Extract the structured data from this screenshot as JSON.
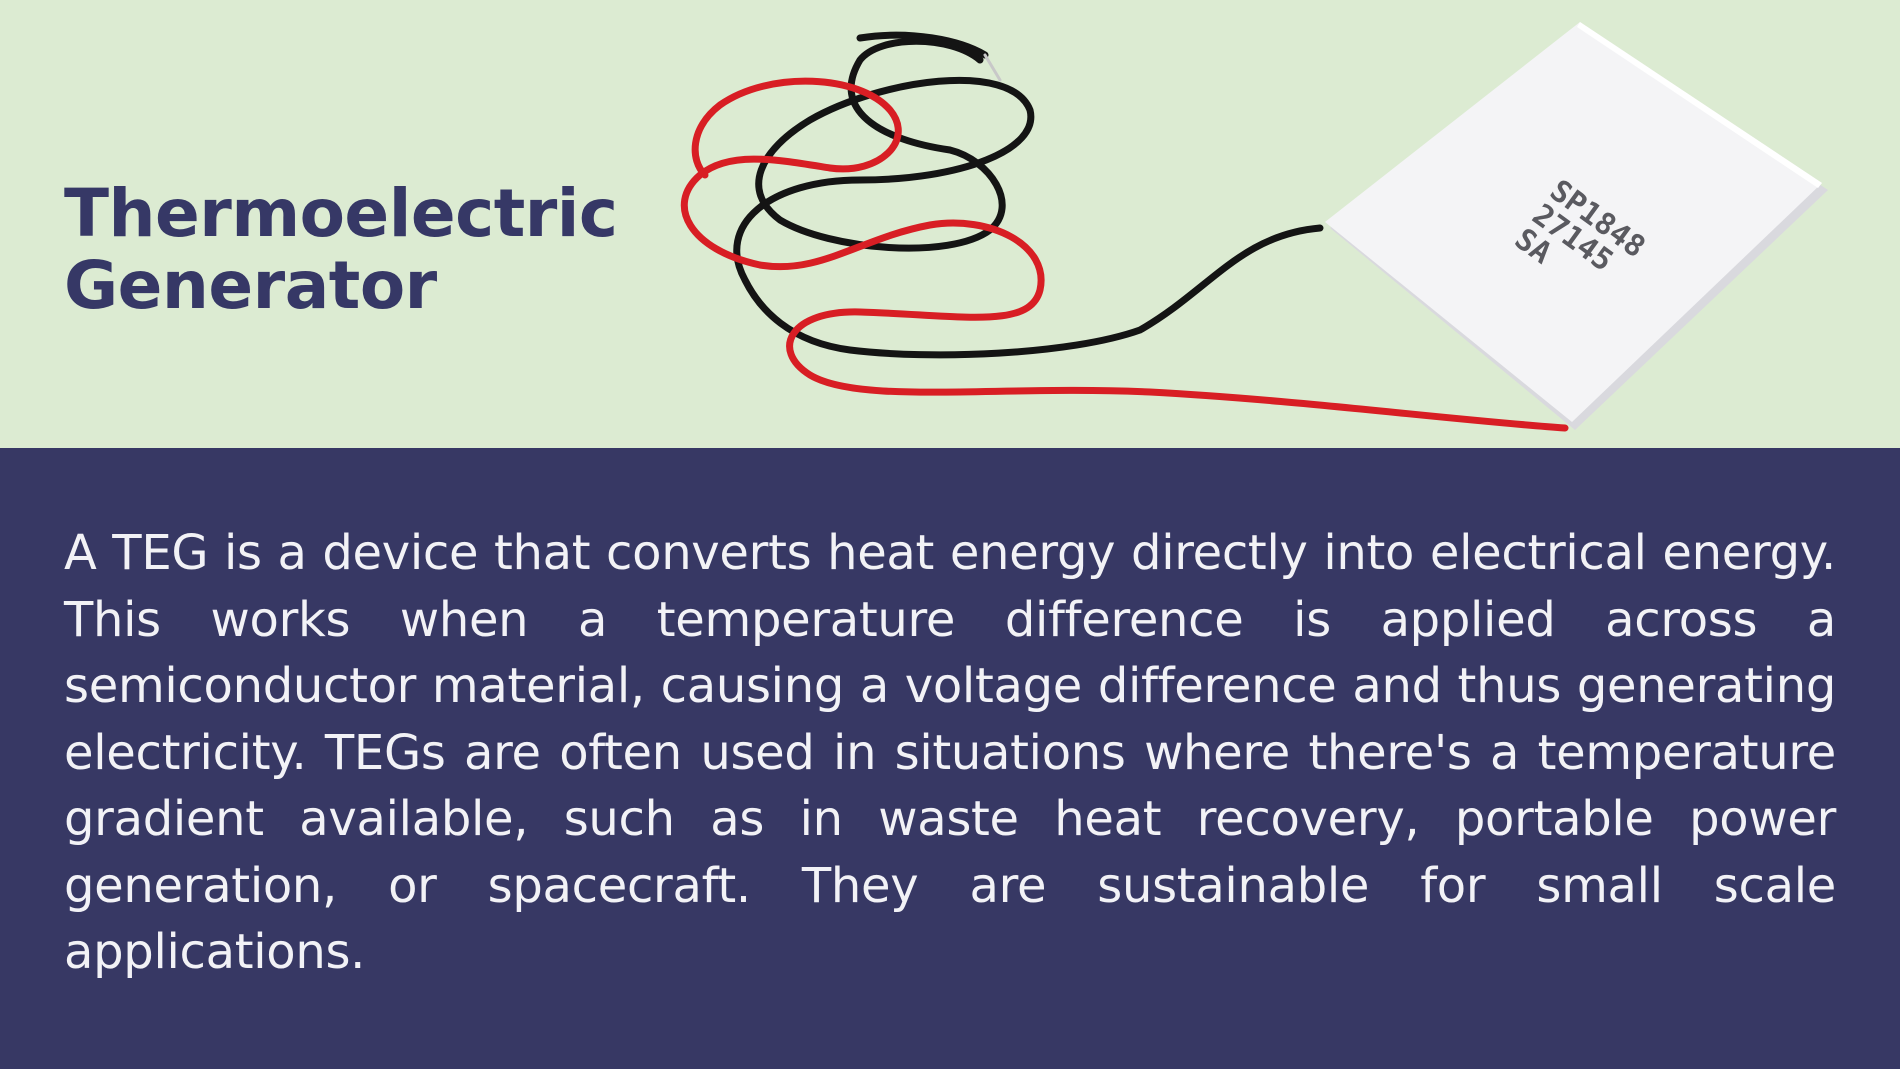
{
  "slide": {
    "title_line1": "Thermoelectric",
    "title_line2": "Generator",
    "module_print": [
      "SP1848",
      "27145",
      "SA"
    ],
    "body": "A TEG is a device that converts heat energy directly into electrical energy. This works when a temperature difference is applied across a semiconductor material, causing a voltage difference and thus generating electricity. TEGs are often used in situations where there's a temperature gradient available, such as in waste heat recovery, portable power generation, or spacecraft. They are sustainable for small scale applications."
  },
  "colors": {
    "top_background": "#dcebd2",
    "bottom_background": "#373864",
    "title": "#363866",
    "body_text": "#f2f2f6",
    "red_wire": "#d81e24",
    "black_wire": "#141414",
    "module": "#f4f4f6"
  }
}
